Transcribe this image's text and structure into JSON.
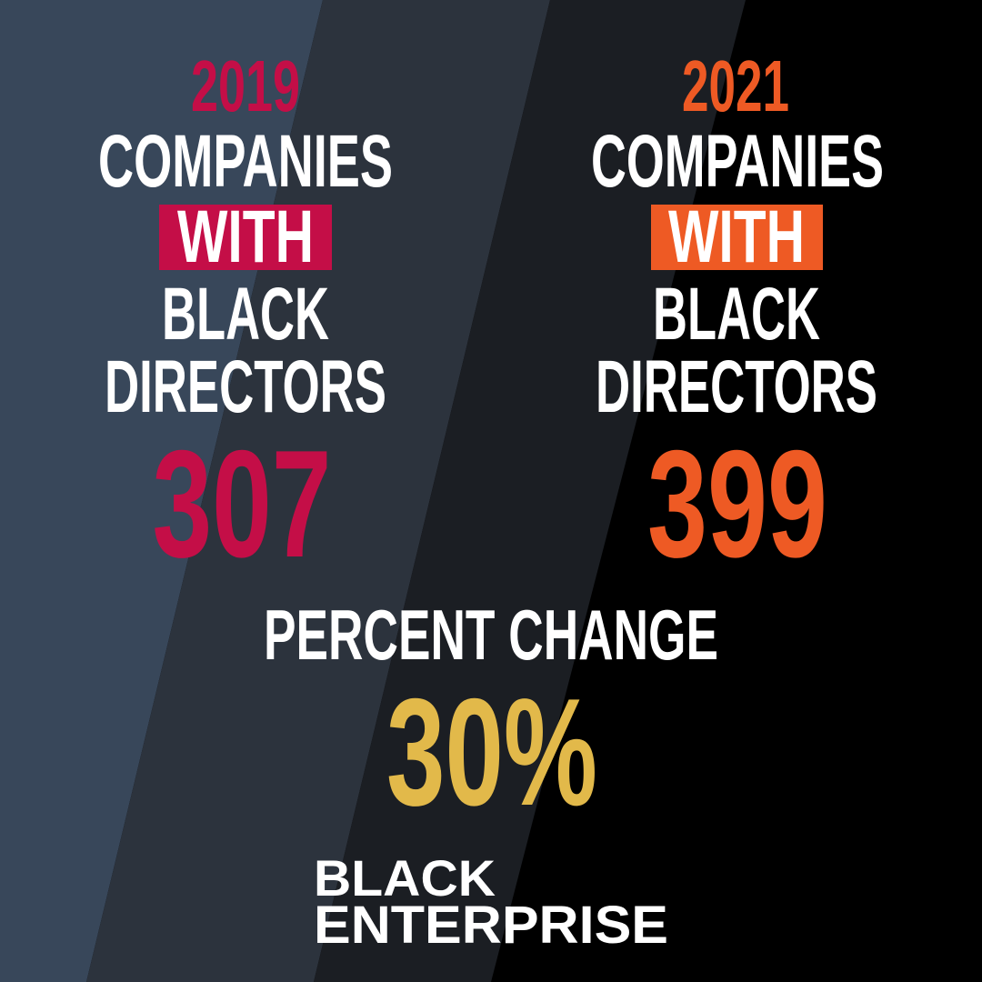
{
  "left": {
    "year": "2019",
    "lines": [
      "COMPANIES",
      "WITH",
      "BLACK",
      "DIRECTORS"
    ],
    "number": "307"
  },
  "right": {
    "year": "2021",
    "lines": [
      "COMPANIES",
      "WITH",
      "BLACK",
      "DIRECTORS"
    ],
    "number": "399"
  },
  "change": {
    "label": "PERCENT CHANGE",
    "value": "30%"
  },
  "logo": {
    "line1": "BLACK",
    "line2": "ENTERPRISE"
  }
}
